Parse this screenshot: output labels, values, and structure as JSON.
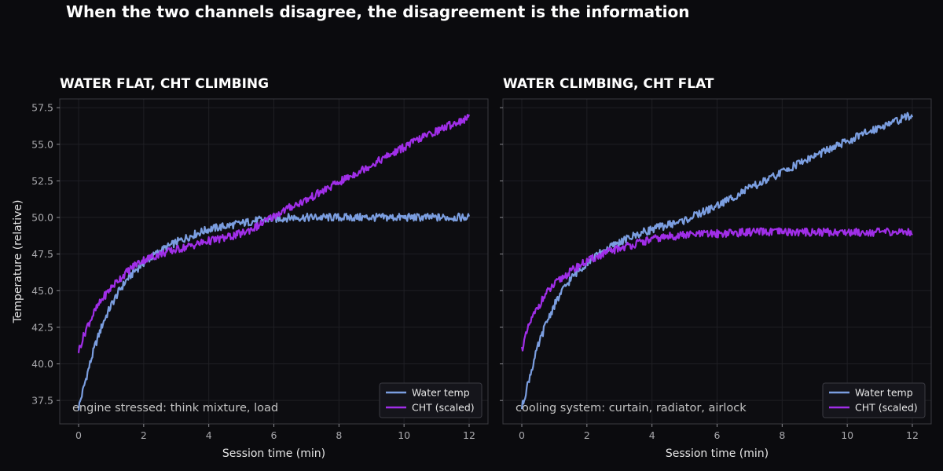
{
  "figure": {
    "title": "When the two channels disagree, the disagreement is the information"
  },
  "colors": {
    "background": "#0b0b0e",
    "water": "#7b9ee0",
    "cht": "#a02ee8",
    "grid": "#1f1f24",
    "spine": "#3a3a40"
  },
  "chart_data": [
    {
      "type": "line",
      "title": "WATER FLAT, CHT CLIMBING",
      "xlabel": "Session time (min)",
      "ylabel": "Temperature (relative)",
      "xlim": [
        -0.58,
        12.58
      ],
      "ylim": [
        35.9,
        58.1
      ],
      "xticks": [
        0,
        2,
        4,
        6,
        8,
        10,
        12
      ],
      "yticks": [
        37.5,
        40.0,
        42.5,
        45.0,
        47.5,
        50.0,
        52.5,
        55.0,
        57.5
      ],
      "grid": true,
      "legend": "lower-right",
      "annotation": "engine stressed: think mixture, load",
      "series": [
        {
          "name": "Water temp",
          "color": "#7b9ee0",
          "x": [
            0,
            0.25,
            0.5,
            0.75,
            1,
            1.25,
            1.5,
            1.75,
            2,
            2.5,
            3,
            3.5,
            4,
            4.5,
            5,
            5.5,
            6,
            6.5,
            7,
            8,
            9,
            10,
            11,
            12
          ],
          "y": [
            37.0,
            39.2,
            41.2,
            42.8,
            44.0,
            45.0,
            45.8,
            46.4,
            46.9,
            47.7,
            48.3,
            48.8,
            49.2,
            49.4,
            49.6,
            49.8,
            49.9,
            50.0,
            50.0,
            50.0,
            50.0,
            50.0,
            50.0,
            50.0
          ]
        },
        {
          "name": "CHT (scaled)",
          "color": "#a02ee8",
          "x": [
            0,
            0.25,
            0.5,
            0.75,
            1,
            1.25,
            1.5,
            1.75,
            2,
            2.5,
            3,
            3.5,
            4,
            4.5,
            5,
            5.5,
            6,
            6.5,
            7,
            7.5,
            8,
            8.5,
            9,
            9.5,
            10,
            10.5,
            11,
            11.5,
            12
          ],
          "y": [
            40.9,
            42.5,
            43.6,
            44.5,
            45.2,
            45.8,
            46.3,
            46.8,
            47.1,
            47.5,
            47.8,
            48.1,
            48.4,
            48.6,
            48.9,
            49.4,
            50.1,
            50.7,
            51.2,
            51.8,
            52.4,
            53.0,
            53.6,
            54.2,
            54.8,
            55.4,
            55.9,
            56.4,
            56.8
          ]
        }
      ]
    },
    {
      "type": "line",
      "title": "WATER CLIMBING, CHT FLAT",
      "xlabel": "Session time (min)",
      "ylabel": "",
      "xlim": [
        -0.58,
        12.58
      ],
      "ylim": [
        35.9,
        58.1
      ],
      "xticks": [
        0,
        2,
        4,
        6,
        8,
        10,
        12
      ],
      "yticks": [
        37.5,
        40.0,
        42.5,
        45.0,
        47.5,
        50.0,
        52.5,
        55.0,
        57.5
      ],
      "grid": true,
      "legend": "lower-right",
      "annotation": "cooling system: curtain, radiator, airlock",
      "series": [
        {
          "name": "Water temp",
          "color": "#7b9ee0",
          "x": [
            0,
            0.25,
            0.5,
            0.75,
            1,
            1.25,
            1.5,
            1.75,
            2,
            2.5,
            3,
            3.5,
            4,
            4.5,
            5,
            5.5,
            6,
            6.5,
            7,
            7.5,
            8,
            8.5,
            9,
            9.5,
            10,
            10.5,
            11,
            11.5,
            12
          ],
          "y": [
            37.0,
            39.2,
            41.2,
            42.8,
            44.0,
            45.0,
            45.8,
            46.4,
            46.9,
            47.7,
            48.3,
            48.8,
            49.2,
            49.5,
            49.8,
            50.3,
            50.8,
            51.4,
            52.0,
            52.5,
            53.1,
            53.7,
            54.2,
            54.7,
            55.2,
            55.7,
            56.2,
            56.6,
            57.0
          ]
        },
        {
          "name": "CHT (scaled)",
          "color": "#a02ee8",
          "x": [
            0,
            0.25,
            0.5,
            0.75,
            1,
            1.25,
            1.5,
            1.75,
            2,
            2.5,
            3,
            3.5,
            4,
            4.5,
            5,
            6,
            7,
            8,
            9,
            10,
            11,
            12
          ],
          "y": [
            41.0,
            42.8,
            43.9,
            44.8,
            45.4,
            45.9,
            46.3,
            46.7,
            47.0,
            47.5,
            47.9,
            48.2,
            48.5,
            48.7,
            48.8,
            48.9,
            49.0,
            49.0,
            49.0,
            49.0,
            49.0,
            49.0
          ]
        }
      ]
    }
  ]
}
